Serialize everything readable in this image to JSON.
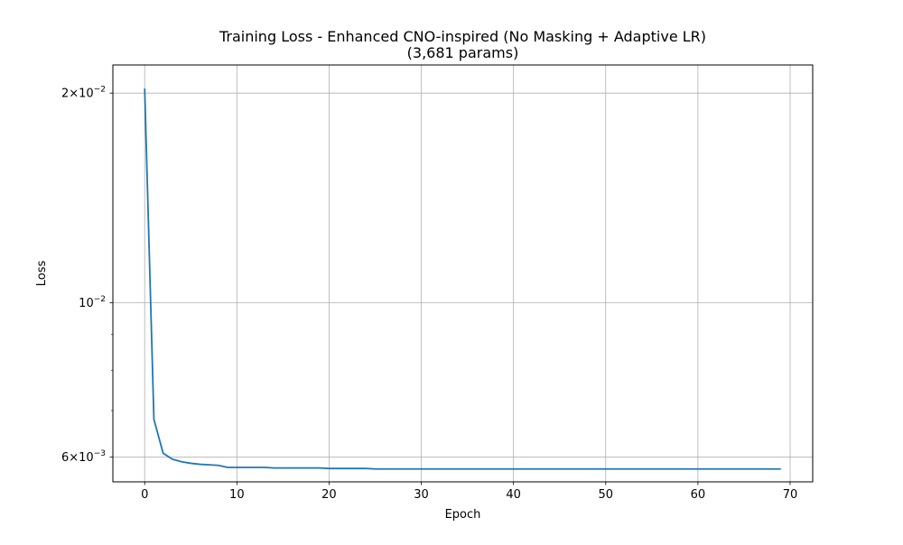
{
  "chart_data": {
    "type": "line",
    "title": "Training Loss - Enhanced CNO-inspired (No Masking + Adaptive LR)",
    "subtitle": "(3,681 params)",
    "xlabel": "Epoch",
    "ylabel": "Loss",
    "xlim": [
      -3.45,
      72.45
    ],
    "ylim": [
      0.00553,
      0.02195
    ],
    "yscale": "log",
    "grid": true,
    "x_ticks": [
      0,
      10,
      20,
      30,
      40,
      50,
      60,
      70
    ],
    "x_tick_labels": [
      "0",
      "10",
      "20",
      "30",
      "40",
      "50",
      "60",
      "70"
    ],
    "y_major_ticks": [
      0.006,
      0.01,
      0.02
    ],
    "y_minor_ticks": [
      0.007,
      0.008,
      0.009
    ],
    "series": [
      {
        "color": "#1f77b4",
        "x": [
          0,
          1,
          2,
          3,
          4,
          5,
          6,
          7,
          8,
          9,
          10,
          11,
          12,
          13,
          14,
          15,
          16,
          17,
          18,
          19,
          20,
          21,
          22,
          23,
          24,
          25,
          26,
          27,
          28,
          29,
          30,
          31,
          32,
          33,
          34,
          35,
          36,
          37,
          38,
          39,
          40,
          41,
          42,
          43,
          44,
          45,
          46,
          47,
          48,
          49,
          50,
          51,
          52,
          53,
          54,
          55,
          56,
          57,
          58,
          59,
          60,
          61,
          62,
          63,
          64,
          65,
          64,
          67,
          68,
          69
        ],
        "values": [
          0.0203,
          0.0068,
          0.00608,
          0.00596,
          0.00591,
          0.00588,
          0.00586,
          0.00585,
          0.00584,
          0.0058,
          0.0058,
          0.0058,
          0.0058,
          0.0058,
          0.00579,
          0.00579,
          0.00579,
          0.00579,
          0.00579,
          0.00579,
          0.00578,
          0.00578,
          0.00578,
          0.00578,
          0.00578,
          0.00577,
          0.00577,
          0.00577,
          0.00577,
          0.00577,
          0.00577,
          0.00577,
          0.00577,
          0.00577,
          0.00577,
          0.00577,
          0.00577,
          0.00577,
          0.00577,
          0.00577,
          0.00577,
          0.00577,
          0.00577,
          0.00577,
          0.00577,
          0.00577,
          0.00577,
          0.00577,
          0.00577,
          0.00577,
          0.00577,
          0.00577,
          0.00577,
          0.00577,
          0.00577,
          0.00577,
          0.00577,
          0.00577,
          0.00577,
          0.00577,
          0.00577,
          0.00577,
          0.00577,
          0.00577,
          0.00577,
          0.00577,
          0.00577,
          0.00577,
          0.00577,
          0.00577
        ]
      }
    ]
  }
}
